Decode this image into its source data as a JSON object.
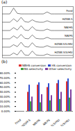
{
  "chart_data": [
    {
      "type": "line",
      "title": "(a)",
      "tick_labels": false,
      "color": "#333333",
      "x": [
        0,
        1,
        2,
        3,
        4,
        5,
        6,
        7,
        8,
        9,
        10,
        11,
        12,
        13,
        14,
        15,
        16,
        17,
        18,
        19
      ],
      "xlim": [
        0,
        19
      ],
      "ylim": [
        10,
        115
      ],
      "series": [
        {
          "name": "Feed",
          "values": [
            100,
            100,
            100,
            112,
            101,
            100,
            100,
            100,
            100,
            100,
            100,
            100,
            104,
            100,
            100,
            100,
            100,
            100,
            100,
            100
          ]
        },
        {
          "name": "HZSM-5",
          "values": [
            83,
            83,
            83,
            90,
            84,
            93,
            84,
            83,
            88,
            84,
            83,
            83,
            86,
            83,
            83,
            83,
            83,
            83,
            83,
            83
          ]
        },
        {
          "name": "NB/HS",
          "values": [
            66,
            66,
            66,
            72,
            67,
            76,
            67,
            66,
            74,
            67,
            66,
            66,
            69,
            66,
            66,
            66,
            66,
            66,
            66,
            66
          ]
        },
        {
          "name": "NB/FS",
          "values": [
            49,
            49,
            49,
            55,
            50,
            58,
            50,
            49,
            57,
            50,
            49,
            49,
            52,
            49,
            49,
            49,
            49,
            49,
            49,
            49
          ]
        },
        {
          "name": "HZSM-5(5/HS)",
          "values": [
            32,
            32,
            32,
            37,
            33,
            42,
            33,
            32,
            41,
            33,
            32,
            32,
            35,
            32,
            32,
            32,
            32,
            32,
            32,
            32
          ]
        },
        {
          "name": "HZSM-5(S/HS)",
          "values": [
            15,
            15,
            15,
            20,
            16,
            26,
            16,
            15,
            24,
            16,
            15,
            15,
            18,
            15,
            15,
            15,
            15,
            15,
            15,
            15
          ]
        }
      ]
    },
    {
      "type": "bar",
      "title": "(b)",
      "legend": "top-right",
      "categories": [
        "Feed",
        "HZSM-5",
        "NB/HS",
        "NB/FS",
        "HZSM-5(5/HS)",
        "HZSM-5(S/HS)"
      ],
      "ylim": [
        0,
        80
      ],
      "yticks": [
        {
          "value": 0,
          "label": "0.00%"
        },
        {
          "value": 10,
          "label": "10.00%"
        },
        {
          "value": 20,
          "label": "20.00%"
        },
        {
          "value": 30,
          "label": "30.00%"
        },
        {
          "value": 40,
          "label": "40.00%"
        },
        {
          "value": 50,
          "label": "50.00%"
        },
        {
          "value": 60,
          "label": "60.00%"
        },
        {
          "value": 70,
          "label": "70.00%"
        },
        {
          "value": 80,
          "label": "80.00%"
        }
      ],
      "series": [
        {
          "name": "NBHS conversion",
          "color": "#e03030",
          "values": [
            0,
            40,
            55,
            50,
            58,
            62
          ]
        },
        {
          "name": "HS conversion",
          "color": "#3050d0",
          "values": [
            0,
            55,
            60,
            58,
            65,
            68
          ]
        },
        {
          "name": "BA selectivity",
          "color": "#40a040",
          "values": [
            0,
            20,
            18,
            22,
            25,
            28
          ]
        },
        {
          "name": "Other selectivity",
          "color": "#8040a0",
          "values": [
            0,
            30,
            35,
            33,
            40,
            45
          ]
        }
      ]
    }
  ]
}
